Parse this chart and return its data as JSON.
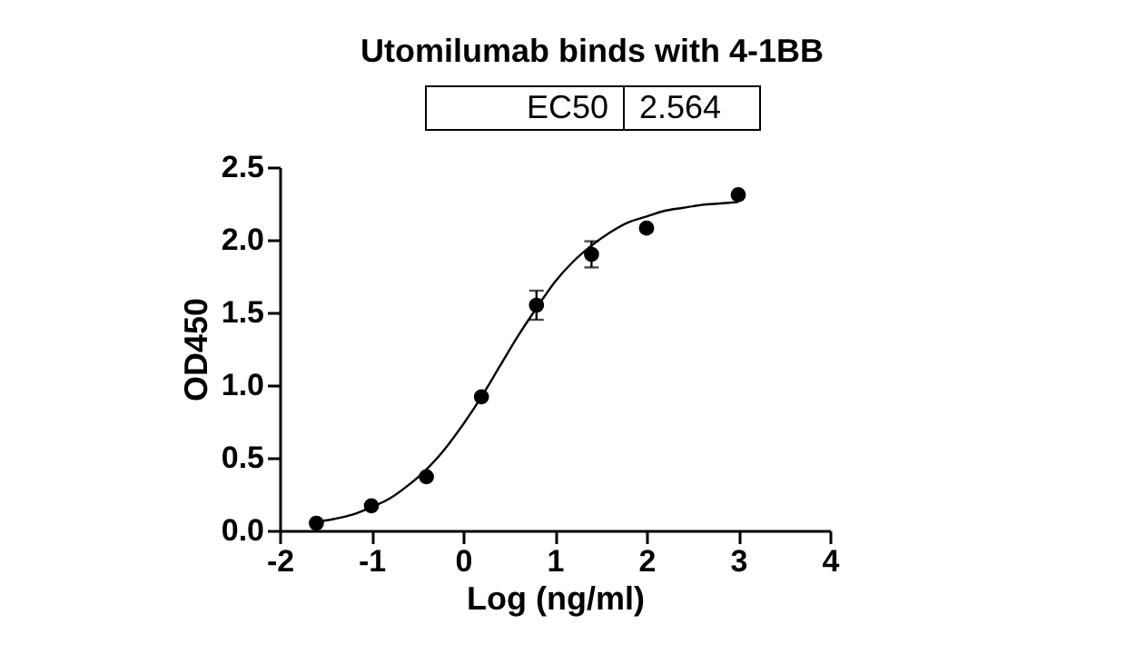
{
  "chart_data": {
    "type": "scatter",
    "title": "Utomilumab binds with 4-1BB",
    "annotations": [
      "EC50",
      "2.564"
    ],
    "xlabel": "Log (ng/ml)",
    "ylabel": "OD450",
    "xlim": [
      -2,
      4
    ],
    "xticks": [
      -2,
      -1,
      0,
      1,
      2,
      3,
      4
    ],
    "ylim": [
      0,
      2.5
    ],
    "yticks": [
      {
        "value": 0,
        "label": "0.0"
      },
      0.5,
      {
        "value": 1,
        "label": "1.0"
      },
      1.5,
      {
        "value": 2,
        "label": "2.0"
      },
      2.5
    ],
    "series": [
      {
        "color": "#000000",
        "marker": "circle",
        "x": [
          -1.6,
          -1.0,
          -0.4,
          0.2,
          0.8,
          1.4,
          2.0,
          3.0
        ],
        "values": [
          0.05,
          0.17,
          0.37,
          0.92,
          1.55,
          1.9,
          2.08,
          2.31
        ],
        "errors": [
          null,
          null,
          null,
          null,
          0.1,
          0.09,
          null,
          null
        ]
      },
      {
        "type": "line",
        "color": "#000000",
        "x": [
          -1.6,
          -1.4,
          -1.2,
          -1.0,
          -0.8,
          -0.6,
          -0.4,
          -0.2,
          0,
          0.2,
          0.4,
          0.6,
          0.8,
          1.0,
          1.2,
          1.4,
          1.6,
          1.8,
          2.0,
          2.2,
          2.4,
          2.6,
          2.8,
          3.0
        ],
        "values": [
          0.06,
          0.08,
          0.11,
          0.16,
          0.22,
          0.31,
          0.42,
          0.56,
          0.73,
          0.92,
          1.13,
          1.34,
          1.53,
          1.71,
          1.85,
          1.96,
          2.05,
          2.12,
          2.16,
          2.2,
          2.22,
          2.24,
          2.25,
          2.26
        ]
      }
    ]
  }
}
